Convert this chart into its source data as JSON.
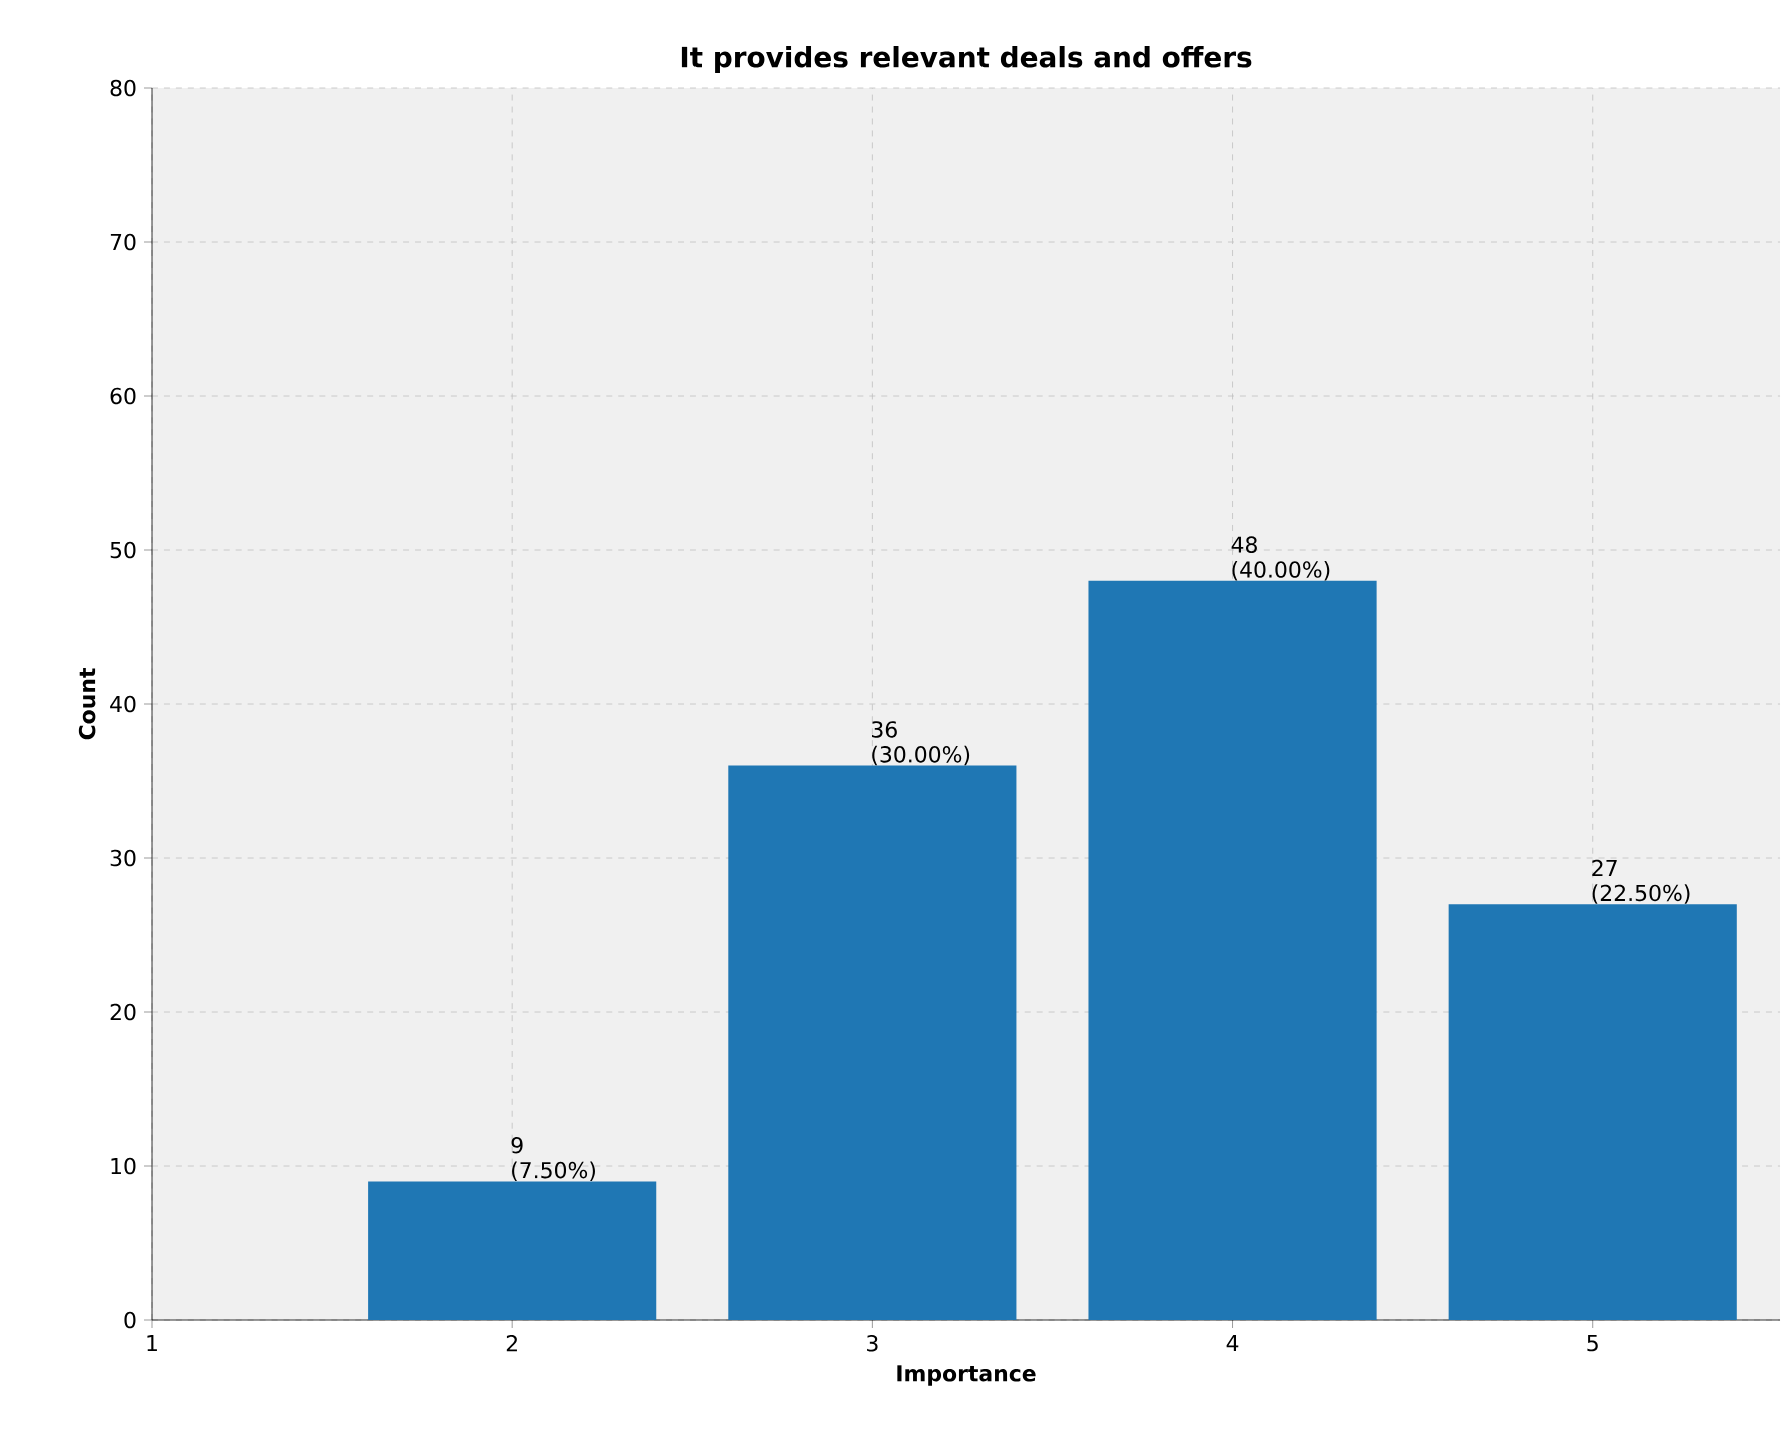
{
  "chart_data": {
    "type": "bar",
    "title": "It provides relevant deals and offers",
    "xlabel": "Importance",
    "ylabel": "Count",
    "x": [
      2,
      3,
      4,
      5
    ],
    "values": [
      9,
      36,
      48,
      27
    ],
    "value_labels": [
      "9 (7.50%)",
      "36 (30.00%)",
      "48 (40.00%)",
      "27 (22.50%)"
    ],
    "color": "#1f77b4",
    "xlim": [
      1,
      5.52
    ],
    "xticks": [
      1,
      2,
      3,
      4,
      5
    ],
    "ylim": [
      0,
      80
    ],
    "yticks": [
      0,
      10,
      20,
      30,
      40,
      50,
      60,
      70,
      80
    ],
    "grid": true
  }
}
